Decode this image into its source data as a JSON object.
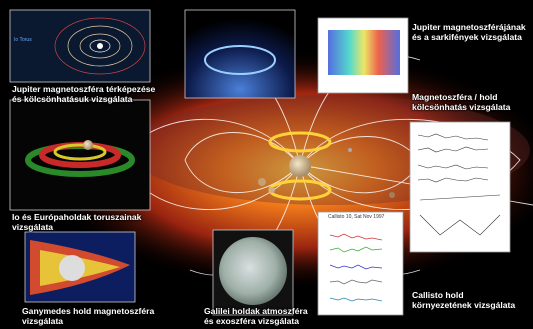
{
  "labels": [
    {
      "lines": [
        "Jupiter magnetoszféra térképezése",
        "és kölcsönhatásuk vizsgálata"
      ]
    },
    {
      "lines": [
        "Io és Európaholdak toruszainak",
        "vizsgálata"
      ]
    },
    {
      "lines": [
        "Ganymedes hold magnetoszféra",
        "vizsgálata"
      ]
    },
    {
      "lines": [
        "Galilei holdak atmoszféra",
        "és exoszféra vizsgálata"
      ]
    },
    {
      "lines": [
        "Jupiter magnetoszférájának",
        "és a sarkifények vizsgálata"
      ]
    },
    {
      "lines": [
        "Magnetoszféra / hold",
        "kölcsönhatás vizsgálata"
      ]
    },
    {
      "lines": [
        "Callisto hold",
        "környezetének vizsgálata"
      ]
    }
  ],
  "insets": {
    "io_torus": "Io Torus",
    "callisto_plot": "Callisto 10, Sat Nov 1997"
  }
}
